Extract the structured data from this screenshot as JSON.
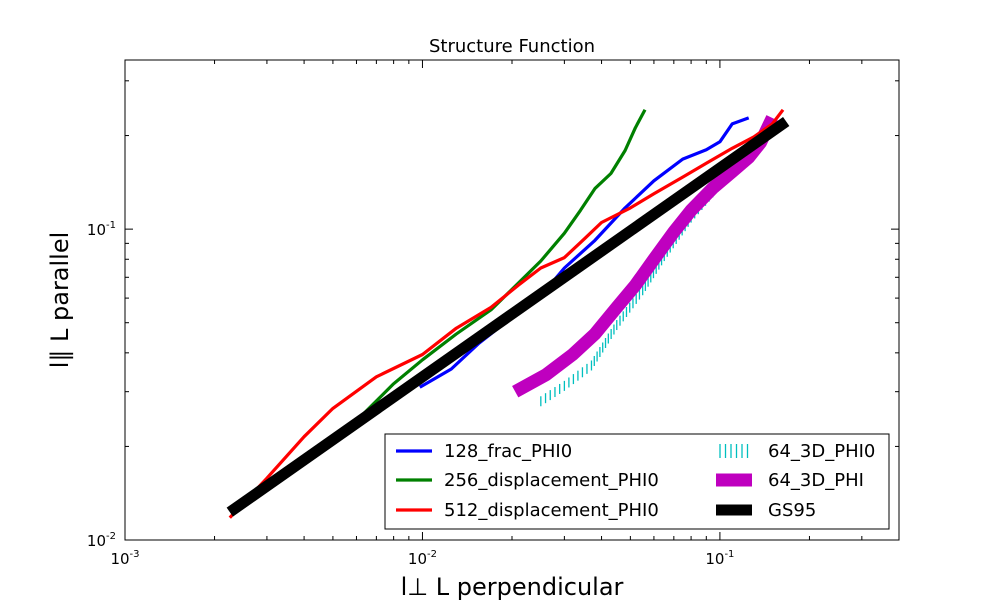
{
  "chart_data": {
    "type": "line",
    "title": "Structure Function",
    "xlabel": "l⊥ L perpendicular",
    "ylabel": "l∥ L parallel",
    "x_scale": "log",
    "y_scale": "log",
    "xlim": [
      0.001,
      0.4
    ],
    "ylim": [
      0.01,
      0.35
    ],
    "grid": false,
    "legend_position": "lower-right",
    "legend_columns": 2,
    "x_ticks": [
      {
        "value": 0.001,
        "base": "10",
        "exp": "-3"
      },
      {
        "value": 0.01,
        "base": "10",
        "exp": "-2"
      },
      {
        "value": 0.1,
        "base": "10",
        "exp": "-1"
      }
    ],
    "y_ticks": [
      {
        "value": 0.01,
        "base": "10",
        "exp": "-2"
      },
      {
        "value": 0.1,
        "base": "10",
        "exp": "-1"
      }
    ],
    "series": [
      {
        "name": "128_frac_PHI0",
        "color": "#0000ff",
        "style": "solid",
        "points": [
          [
            0.0098,
            0.031
          ],
          [
            0.0125,
            0.0355
          ],
          [
            0.0155,
            0.043
          ],
          [
            0.02,
            0.052
          ],
          [
            0.025,
            0.061
          ],
          [
            0.03,
            0.075
          ],
          [
            0.038,
            0.092
          ],
          [
            0.048,
            0.117
          ],
          [
            0.06,
            0.143
          ],
          [
            0.075,
            0.168
          ],
          [
            0.09,
            0.18
          ],
          [
            0.1,
            0.191
          ],
          [
            0.11,
            0.218
          ],
          [
            0.125,
            0.228
          ]
        ]
      },
      {
        "name": "256_displacement_PHI0",
        "color": "#008000",
        "style": "solid",
        "points": [
          [
            0.0047,
            0.0195
          ],
          [
            0.006,
            0.0242
          ],
          [
            0.008,
            0.0318
          ],
          [
            0.01,
            0.038
          ],
          [
            0.013,
            0.046
          ],
          [
            0.017,
            0.055
          ],
          [
            0.021,
            0.067
          ],
          [
            0.025,
            0.079
          ],
          [
            0.03,
            0.097
          ],
          [
            0.034,
            0.115
          ],
          [
            0.038,
            0.135
          ],
          [
            0.043,
            0.151
          ],
          [
            0.048,
            0.179
          ],
          [
            0.052,
            0.212
          ],
          [
            0.056,
            0.242
          ]
        ]
      },
      {
        "name": "512_displacement_PHI0",
        "color": "#ff0000",
        "style": "solid",
        "points": [
          [
            0.00225,
            0.0118
          ],
          [
            0.003,
            0.0158
          ],
          [
            0.004,
            0.0215
          ],
          [
            0.005,
            0.0265
          ],
          [
            0.007,
            0.0335
          ],
          [
            0.01,
            0.0395
          ],
          [
            0.013,
            0.048
          ],
          [
            0.017,
            0.056
          ],
          [
            0.021,
            0.066
          ],
          [
            0.025,
            0.075
          ],
          [
            0.03,
            0.081
          ],
          [
            0.035,
            0.093
          ],
          [
            0.04,
            0.105
          ],
          [
            0.05,
            0.117
          ],
          [
            0.06,
            0.13
          ],
          [
            0.075,
            0.147
          ],
          [
            0.09,
            0.163
          ],
          [
            0.11,
            0.182
          ],
          [
            0.13,
            0.198
          ],
          [
            0.15,
            0.218
          ],
          [
            0.163,
            0.242
          ]
        ]
      },
      {
        "name": "64_3D_PHI0",
        "color": "#00bfbf",
        "style": "hatched",
        "points": [
          [
            0.025,
            0.029
          ],
          [
            0.03,
            0.0325
          ],
          [
            0.037,
            0.0378
          ],
          [
            0.045,
            0.051
          ],
          [
            0.055,
            0.066
          ],
          [
            0.065,
            0.085
          ],
          [
            0.08,
            0.113
          ],
          [
            0.1,
            0.145
          ],
          [
            0.12,
            0.172
          ],
          [
            0.135,
            0.196
          ],
          [
            0.145,
            0.22
          ]
        ]
      },
      {
        "name": "64_3D_PHI",
        "color": "#bf00bf",
        "style": "thick",
        "points": [
          [
            0.0205,
            0.03
          ],
          [
            0.026,
            0.034
          ],
          [
            0.032,
            0.0395
          ],
          [
            0.038,
            0.046
          ],
          [
            0.045,
            0.056
          ],
          [
            0.052,
            0.066
          ],
          [
            0.06,
            0.08
          ],
          [
            0.07,
            0.098
          ],
          [
            0.08,
            0.115
          ],
          [
            0.095,
            0.136
          ],
          [
            0.11,
            0.153
          ],
          [
            0.125,
            0.17
          ],
          [
            0.137,
            0.19
          ],
          [
            0.145,
            0.213
          ],
          [
            0.15,
            0.228
          ]
        ]
      },
      {
        "name": "GS95",
        "color": "#000000",
        "style": "thick",
        "points": [
          [
            0.00225,
            0.0123
          ],
          [
            0.167,
            0.222
          ]
        ]
      }
    ]
  }
}
